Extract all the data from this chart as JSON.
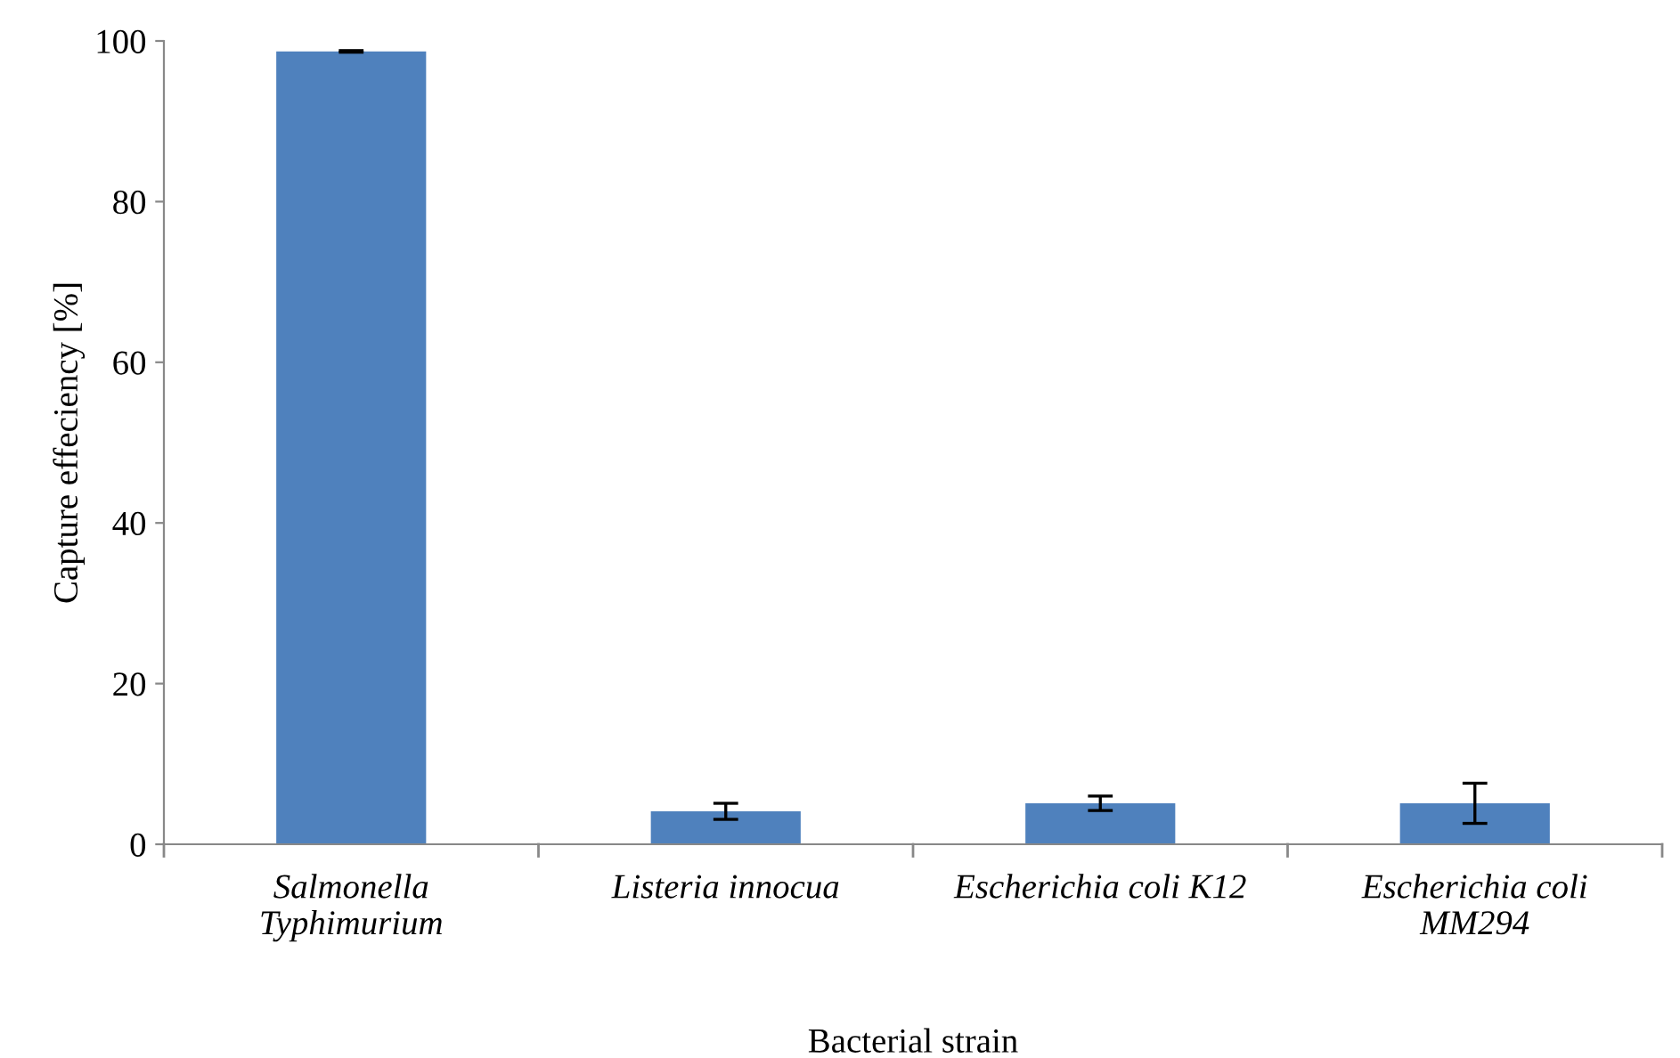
{
  "chart_data": {
    "type": "bar",
    "xlabel": "Bacterial strain",
    "ylabel": "Capture effeciency [%]",
    "categories": [
      "Salmonella\nTyphimurium",
      "Listeria innocua",
      "Escherichia coli K12",
      "Escherichia coli\nMM294"
    ],
    "values": [
      98.7,
      4.1,
      5.1,
      5.1
    ],
    "errors": [
      0.1,
      1.0,
      0.9,
      2.5
    ],
    "color": "#4f81bd",
    "ylim": [
      0,
      100
    ],
    "yticks": [
      0,
      20,
      40,
      60,
      80,
      100
    ],
    "grid": false
  }
}
